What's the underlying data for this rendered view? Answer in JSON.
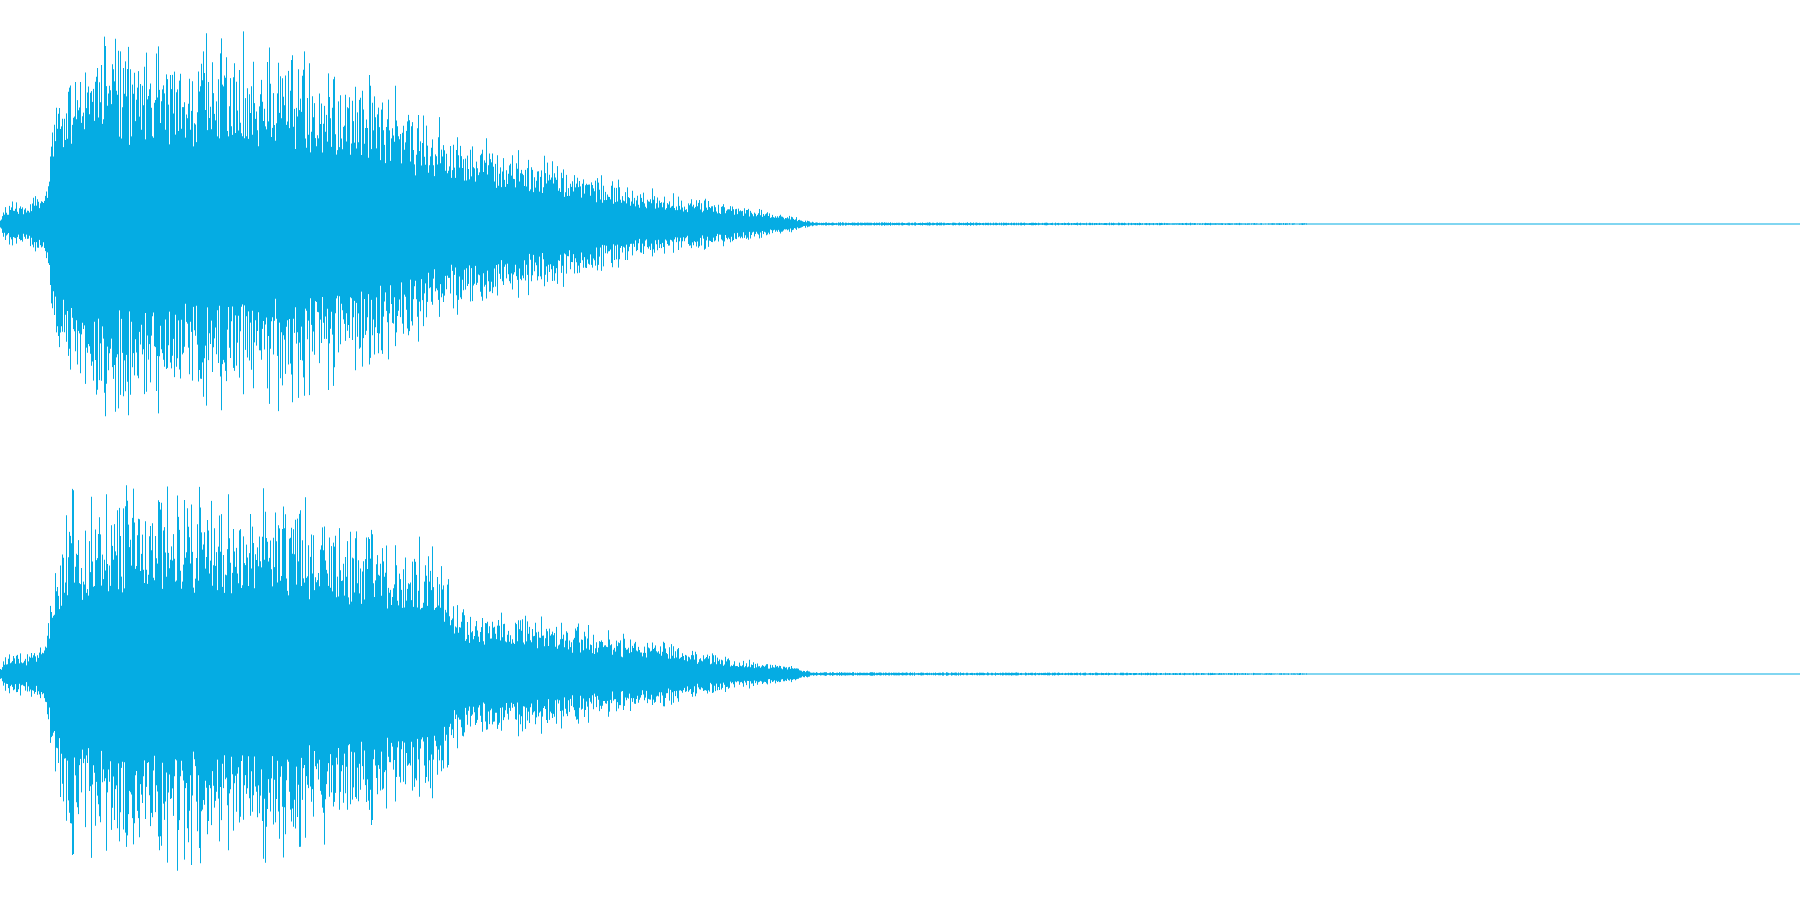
{
  "waveform": {
    "color": "#05ACE3",
    "background": "#FFFFFF",
    "channel_count": 2,
    "channels": [
      {
        "name": "",
        "envelope": [
          {
            "t": 0.0,
            "a": 0.04
          },
          {
            "t": 0.005,
            "a": 0.12
          },
          {
            "t": 0.015,
            "a": 0.1
          },
          {
            "t": 0.025,
            "a": 0.2
          },
          {
            "t": 0.03,
            "a": 0.65
          },
          {
            "t": 0.04,
            "a": 0.9
          },
          {
            "t": 0.06,
            "a": 1.0
          },
          {
            "t": 0.1,
            "a": 0.95
          },
          {
            "t": 0.14,
            "a": 1.0
          },
          {
            "t": 0.18,
            "a": 0.85
          },
          {
            "t": 0.22,
            "a": 0.7
          },
          {
            "t": 0.24,
            "a": 0.55
          },
          {
            "t": 0.28,
            "a": 0.4
          },
          {
            "t": 0.32,
            "a": 0.3
          },
          {
            "t": 0.35,
            "a": 0.2
          },
          {
            "t": 0.4,
            "a": 0.12
          },
          {
            "t": 0.44,
            "a": 0.04
          },
          {
            "t": 0.452,
            "a": 0.01
          },
          {
            "t": 1.0,
            "a": 0.0
          }
        ]
      },
      {
        "name": "",
        "envelope": [
          {
            "t": 0.0,
            "a": 0.04
          },
          {
            "t": 0.005,
            "a": 0.12
          },
          {
            "t": 0.015,
            "a": 0.1
          },
          {
            "t": 0.025,
            "a": 0.2
          },
          {
            "t": 0.03,
            "a": 0.6
          },
          {
            "t": 0.04,
            "a": 0.95
          },
          {
            "t": 0.08,
            "a": 1.0
          },
          {
            "t": 0.15,
            "a": 0.95
          },
          {
            "t": 0.2,
            "a": 0.8
          },
          {
            "t": 0.245,
            "a": 0.65
          },
          {
            "t": 0.255,
            "a": 0.35
          },
          {
            "t": 0.3,
            "a": 0.3
          },
          {
            "t": 0.35,
            "a": 0.2
          },
          {
            "t": 0.4,
            "a": 0.1
          },
          {
            "t": 0.44,
            "a": 0.04
          },
          {
            "t": 0.452,
            "a": 0.01
          },
          {
            "t": 1.0,
            "a": 0.0
          }
        ]
      }
    ]
  }
}
